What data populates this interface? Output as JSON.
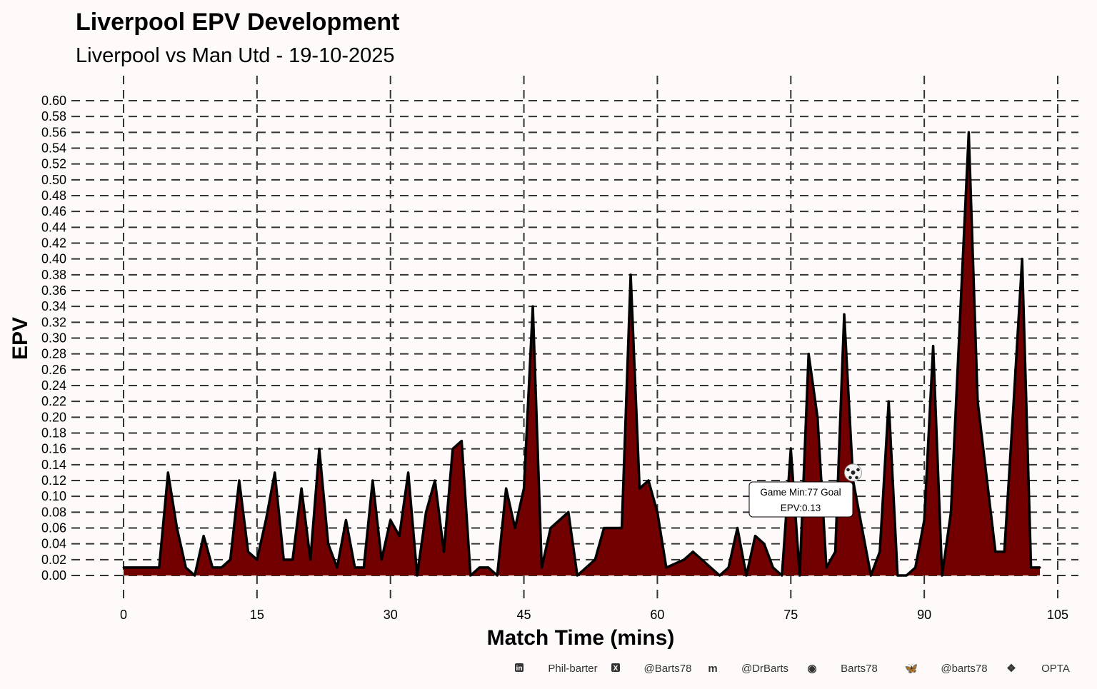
{
  "chart_data": {
    "type": "area",
    "title": "Liverpool  EPV Development",
    "subtitle": "Liverpool vs Man Utd - 19-10-2025",
    "xlabel": "Match Time (mins)",
    "ylabel": "EPV",
    "xlim": [
      0,
      105
    ],
    "ylim": [
      0,
      0.6
    ],
    "xticks": [
      0,
      15,
      30,
      45,
      60,
      75,
      90,
      105
    ],
    "yticks": [
      0.0,
      0.02,
      0.04,
      0.06,
      0.08,
      0.1,
      0.12,
      0.14,
      0.16,
      0.18,
      0.2,
      0.22,
      0.24,
      0.26,
      0.28,
      0.3,
      0.32,
      0.34,
      0.36,
      0.38,
      0.4,
      0.42,
      0.44,
      0.46,
      0.48,
      0.5,
      0.52,
      0.54,
      0.56,
      0.58,
      0.6
    ],
    "grid": true,
    "fill_color": "#730000",
    "line_color": "#000000",
    "x": [
      0,
      4,
      5,
      6,
      7,
      8,
      9,
      10,
      11,
      12,
      13,
      14,
      15,
      16,
      17,
      18,
      19,
      20,
      21,
      22,
      23,
      24,
      25,
      26,
      27,
      28,
      29,
      30,
      31,
      32,
      33,
      34,
      35,
      36,
      37,
      38,
      39,
      40,
      41,
      42,
      43,
      44,
      45,
      46,
      47,
      48,
      49,
      50,
      51,
      53,
      54,
      56,
      57,
      58,
      59,
      60,
      61,
      63,
      64,
      67,
      68,
      69,
      70,
      71,
      72,
      73,
      74,
      75,
      76,
      77,
      78,
      79,
      80,
      81,
      82,
      83,
      84,
      85,
      86,
      87,
      88,
      89,
      90,
      91,
      92,
      93,
      95,
      96,
      98,
      99,
      100,
      101,
      102,
      103
    ],
    "y": [
      0.01,
      0.01,
      0.13,
      0.06,
      0.01,
      0.0,
      0.05,
      0.01,
      0.01,
      0.02,
      0.12,
      0.03,
      0.02,
      0.07,
      0.13,
      0.02,
      0.02,
      0.11,
      0.02,
      0.16,
      0.04,
      0.01,
      0.07,
      0.01,
      0.01,
      0.12,
      0.02,
      0.07,
      0.05,
      0.13,
      0.0,
      0.08,
      0.12,
      0.03,
      0.16,
      0.17,
      0.0,
      0.01,
      0.01,
      0.0,
      0.11,
      0.06,
      0.11,
      0.34,
      0.01,
      0.06,
      0.07,
      0.08,
      0.0,
      0.02,
      0.06,
      0.06,
      0.38,
      0.11,
      0.12,
      0.08,
      0.01,
      0.02,
      0.03,
      0.0,
      0.01,
      0.06,
      0.0,
      0.05,
      0.04,
      0.01,
      0.0,
      0.16,
      0.0,
      0.28,
      0.2,
      0.01,
      0.03,
      0.33,
      0.12,
      0.06,
      0.0,
      0.03,
      0.22,
      0.0,
      0.0,
      0.01,
      0.07,
      0.29,
      0.0,
      0.08,
      0.56,
      0.22,
      0.03,
      0.03,
      0.21,
      0.4,
      0.01,
      0.01
    ],
    "annotations": [
      {
        "type": "goal",
        "line1": "Game Min:77 Goal",
        "line2": "EPV:0.13",
        "icon": "soccer-ball-icon",
        "icon_x": 82,
        "icon_y": 0.13
      }
    ]
  },
  "footer": {
    "items": [
      {
        "icon": "linkedin-icon",
        "label": "Phil-barter"
      },
      {
        "icon": "x-twitter-icon",
        "label": "@Barts78"
      },
      {
        "icon": "mastodon-icon",
        "label": "@DrBarts"
      },
      {
        "icon": "github-icon",
        "label": "Barts78"
      },
      {
        "icon": "bluesky-icon",
        "label": "@barts78"
      },
      {
        "icon": "dropbox-icon",
        "label": "OPTA"
      }
    ]
  }
}
